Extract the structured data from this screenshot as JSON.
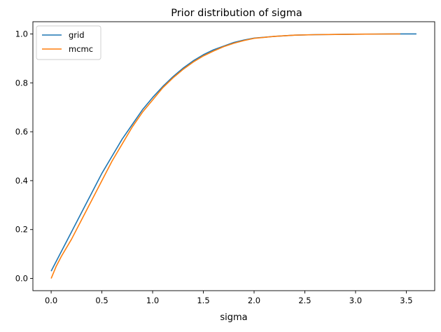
{
  "chart_data": {
    "type": "line",
    "title": "Prior distribution of sigma",
    "xlabel": "sigma",
    "ylabel": "",
    "xlim": [
      -0.18,
      3.78
    ],
    "ylim": [
      -0.05,
      1.05
    ],
    "xticks": [
      0.0,
      0.5,
      1.0,
      1.5,
      2.0,
      2.5,
      3.0,
      3.5
    ],
    "yticks": [
      0.0,
      0.2,
      0.4,
      0.6,
      0.8,
      1.0
    ],
    "xtick_labels": [
      "0.0",
      "0.5",
      "1.0",
      "1.5",
      "2.0",
      "2.5",
      "3.0",
      "3.5"
    ],
    "ytick_labels": [
      "0.0",
      "0.2",
      "0.4",
      "0.6",
      "0.8",
      "1.0"
    ],
    "grid": false,
    "legend_position": "top-left",
    "series": [
      {
        "name": "grid",
        "color": "#1f77b4",
        "x": [
          0.0,
          0.1,
          0.2,
          0.3,
          0.4,
          0.5,
          0.6,
          0.7,
          0.8,
          0.9,
          1.0,
          1.1,
          1.2,
          1.3,
          1.4,
          1.5,
          1.6,
          1.7,
          1.8,
          1.9,
          2.0,
          2.2,
          2.4,
          2.6,
          2.8,
          3.0,
          3.2,
          3.4,
          3.6
        ],
        "y": [
          0.03,
          0.11,
          0.19,
          0.27,
          0.35,
          0.43,
          0.5,
          0.57,
          0.63,
          0.69,
          0.74,
          0.785,
          0.825,
          0.86,
          0.89,
          0.915,
          0.935,
          0.95,
          0.965,
          0.975,
          0.983,
          0.99,
          0.995,
          0.997,
          0.998,
          0.999,
          0.9995,
          1.0,
          1.0
        ]
      },
      {
        "name": "mcmc",
        "color": "#ff7f0e",
        "x": [
          0.0,
          0.05,
          0.1,
          0.2,
          0.3,
          0.4,
          0.5,
          0.6,
          0.7,
          0.8,
          0.9,
          1.0,
          1.1,
          1.2,
          1.3,
          1.4,
          1.5,
          1.6,
          1.7,
          1.8,
          1.9,
          2.0,
          2.2,
          2.4,
          2.6,
          2.8,
          3.0,
          3.2,
          3.44
        ],
        "y": [
          0.0,
          0.05,
          0.09,
          0.16,
          0.24,
          0.32,
          0.4,
          0.48,
          0.55,
          0.62,
          0.68,
          0.73,
          0.78,
          0.82,
          0.855,
          0.885,
          0.91,
          0.93,
          0.948,
          0.962,
          0.973,
          0.982,
          0.99,
          0.995,
          0.997,
          0.998,
          0.999,
          0.9995,
          1.0
        ]
      }
    ]
  }
}
